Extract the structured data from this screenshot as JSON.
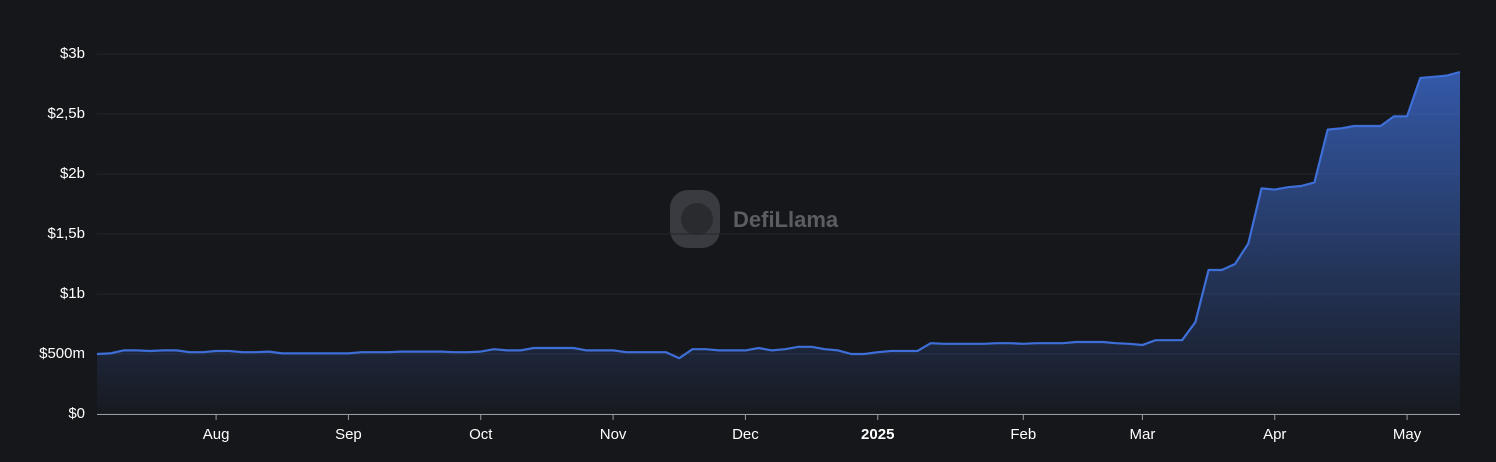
{
  "chart_data": {
    "type": "area",
    "watermark": "DefiLlama",
    "color": "#3e6fd8",
    "grid": true,
    "ylim": [
      0,
      3000
    ],
    "yticks": [
      {
        "value": 0,
        "label": "$0"
      },
      {
        "value": 500,
        "label": "$500m"
      },
      {
        "value": 1000,
        "label": "$1b"
      },
      {
        "value": 1500,
        "label": "$1,5b"
      },
      {
        "value": 2000,
        "label": "$2b"
      },
      {
        "value": 2500,
        "label": "$2,5b"
      },
      {
        "value": 3000,
        "label": "$3b"
      }
    ],
    "categories": [
      null,
      null,
      null,
      null,
      null,
      null,
      null,
      null,
      null,
      "Aug",
      null,
      null,
      null,
      null,
      null,
      null,
      null,
      null,
      null,
      "Sep",
      null,
      null,
      null,
      null,
      null,
      null,
      null,
      null,
      null,
      "Oct",
      null,
      null,
      null,
      null,
      null,
      null,
      null,
      null,
      null,
      "Nov",
      null,
      null,
      null,
      null,
      null,
      null,
      null,
      null,
      null,
      "Dec",
      null,
      null,
      null,
      null,
      null,
      null,
      null,
      null,
      null,
      "2025",
      null,
      null,
      null,
      null,
      null,
      null,
      null,
      null,
      null,
      null,
      "Feb",
      null,
      null,
      null,
      null,
      null,
      null,
      null,
      null,
      "Mar",
      null,
      null,
      null,
      null,
      null,
      null,
      null,
      null,
      null,
      "Apr",
      null,
      null,
      null,
      null,
      null,
      null,
      null,
      null,
      null,
      "May",
      null,
      null,
      null,
      null
    ],
    "values": [
      500,
      505,
      530,
      530,
      525,
      530,
      530,
      515,
      515,
      525,
      525,
      515,
      515,
      520,
      505,
      505,
      505,
      505,
      505,
      505,
      515,
      515,
      515,
      520,
      520,
      520,
      520,
      515,
      515,
      520,
      540,
      530,
      530,
      550,
      550,
      550,
      550,
      530,
      530,
      530,
      515,
      515,
      515,
      515,
      465,
      540,
      540,
      530,
      530,
      530,
      550,
      530,
      540,
      560,
      560,
      540,
      530,
      500,
      500,
      515,
      525,
      525,
      525,
      590,
      585,
      585,
      585,
      585,
      590,
      590,
      585,
      590,
      590,
      590,
      600,
      600,
      600,
      590,
      585,
      575,
      615,
      615,
      615,
      765,
      1200,
      1200,
      1250,
      1420,
      1880,
      1870,
      1890,
      1900,
      1930,
      2370,
      2380,
      2400,
      2400,
      2400,
      2480,
      2480,
      2800,
      2810,
      2820,
      2850
    ]
  }
}
